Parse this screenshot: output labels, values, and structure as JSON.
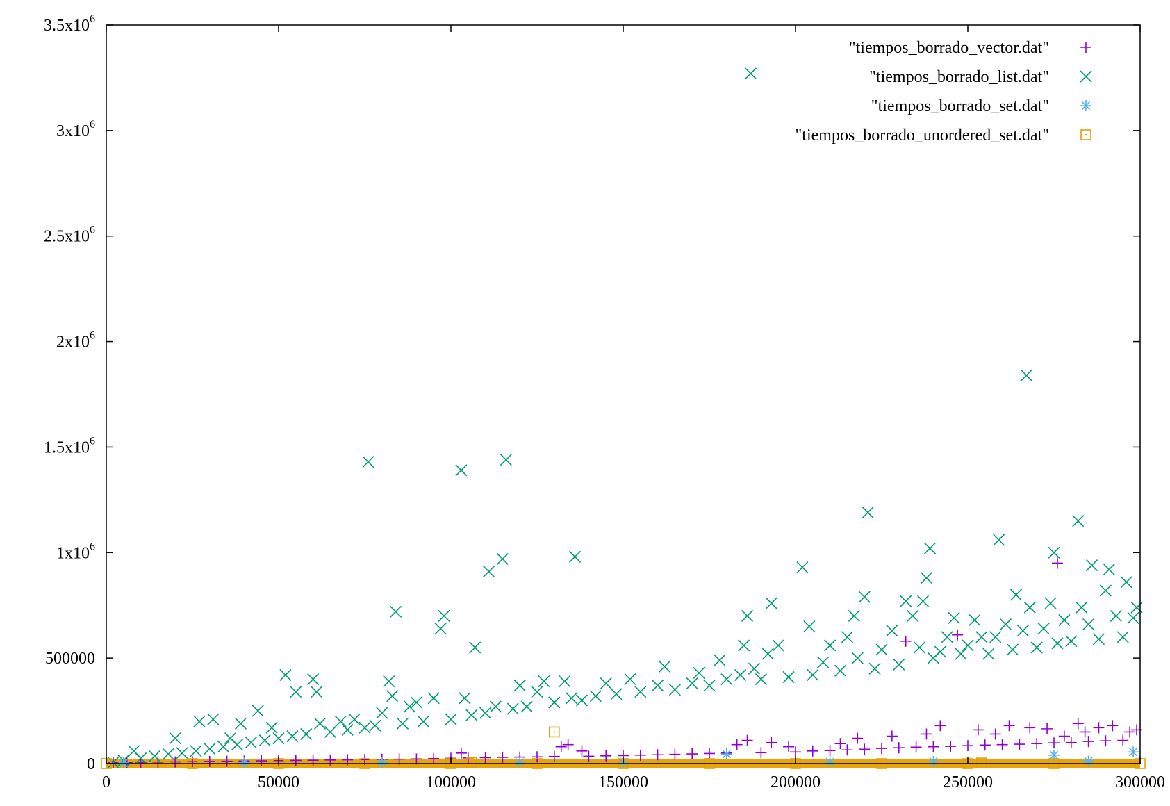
{
  "chart_data": {
    "type": "scatter",
    "title": "",
    "xlabel": "",
    "ylabel": "",
    "xlim": [
      0,
      300000
    ],
    "ylim": [
      0,
      3500000
    ],
    "grid": false,
    "legend_position": "top-right",
    "x_ticks": [
      {
        "value": 0,
        "label": "0"
      },
      {
        "value": 50000,
        "label": "50000"
      },
      {
        "value": 100000,
        "label": "100000"
      },
      {
        "value": 150000,
        "label": "150000"
      },
      {
        "value": 200000,
        "label": "200000"
      },
      {
        "value": 250000,
        "label": "250000"
      },
      {
        "value": 300000,
        "label": "300000"
      }
    ],
    "y_ticks": [
      {
        "value": 0,
        "mantissa": "0",
        "exponent": ""
      },
      {
        "value": 500000,
        "mantissa": "500000",
        "exponent": ""
      },
      {
        "value": 1000000,
        "mantissa": "1x10",
        "exponent": "6"
      },
      {
        "value": 1500000,
        "mantissa": "1.5x10",
        "exponent": "6"
      },
      {
        "value": 2000000,
        "mantissa": "2x10",
        "exponent": "6"
      },
      {
        "value": 2500000,
        "mantissa": "2.5x10",
        "exponent": "6"
      },
      {
        "value": 3000000,
        "mantissa": "3x10",
        "exponent": "6"
      },
      {
        "value": 3500000,
        "mantissa": "3.5x10",
        "exponent": "6"
      }
    ],
    "series": [
      {
        "name": "\"tiempos_borrado_vector.dat\"",
        "marker": "plus",
        "color": "#9400d3",
        "points": [
          [
            2000,
            4000
          ],
          [
            6000,
            5000
          ],
          [
            10000,
            6000
          ],
          [
            15000,
            7000
          ],
          [
            20000,
            8000
          ],
          [
            25000,
            9000
          ],
          [
            30000,
            10000
          ],
          [
            35000,
            11000
          ],
          [
            40000,
            12000
          ],
          [
            45000,
            13000
          ],
          [
            50000,
            14000
          ],
          [
            55000,
            15000
          ],
          [
            60000,
            16000
          ],
          [
            65000,
            17000
          ],
          [
            70000,
            18000
          ],
          [
            75000,
            19000
          ],
          [
            80000,
            20000
          ],
          [
            85000,
            21000
          ],
          [
            90000,
            22000
          ],
          [
            95000,
            24000
          ],
          [
            100000,
            25000
          ],
          [
            103000,
            50000
          ],
          [
            105000,
            27000
          ],
          [
            110000,
            28000
          ],
          [
            115000,
            30000
          ],
          [
            120000,
            31000
          ],
          [
            125000,
            32000
          ],
          [
            130000,
            34000
          ],
          [
            132000,
            80000
          ],
          [
            134000,
            90000
          ],
          [
            138000,
            60000
          ],
          [
            140000,
            35000
          ],
          [
            145000,
            37000
          ],
          [
            150000,
            38000
          ],
          [
            155000,
            40000
          ],
          [
            160000,
            42000
          ],
          [
            165000,
            44000
          ],
          [
            170000,
            46000
          ],
          [
            175000,
            48000
          ],
          [
            180000,
            50000
          ],
          [
            183000,
            90000
          ],
          [
            186000,
            110000
          ],
          [
            190000,
            52000
          ],
          [
            193000,
            100000
          ],
          [
            198000,
            80000
          ],
          [
            200000,
            55000
          ],
          [
            205000,
            60000
          ],
          [
            210000,
            62000
          ],
          [
            213000,
            95000
          ],
          [
            215000,
            65000
          ],
          [
            218000,
            120000
          ],
          [
            220000,
            68000
          ],
          [
            225000,
            72000
          ],
          [
            228000,
            130000
          ],
          [
            230000,
            75000
          ],
          [
            232000,
            580000
          ],
          [
            235000,
            78000
          ],
          [
            238000,
            140000
          ],
          [
            240000,
            80000
          ],
          [
            242000,
            180000
          ],
          [
            245000,
            82000
          ],
          [
            247000,
            610000
          ],
          [
            250000,
            85000
          ],
          [
            253000,
            160000
          ],
          [
            255000,
            88000
          ],
          [
            258000,
            140000
          ],
          [
            260000,
            90000
          ],
          [
            262000,
            180000
          ],
          [
            265000,
            92000
          ],
          [
            268000,
            170000
          ],
          [
            270000,
            95000
          ],
          [
            273000,
            165000
          ],
          [
            275000,
            98000
          ],
          [
            276000,
            950000
          ],
          [
            278000,
            130000
          ],
          [
            280000,
            100000
          ],
          [
            282000,
            190000
          ],
          [
            284000,
            150000
          ],
          [
            285000,
            105000
          ],
          [
            288000,
            170000
          ],
          [
            290000,
            108000
          ],
          [
            292000,
            180000
          ],
          [
            295000,
            110000
          ],
          [
            297000,
            150000
          ],
          [
            299000,
            160000
          ]
        ]
      },
      {
        "name": "\"tiempos_borrado_list.dat\"",
        "marker": "cross",
        "color": "#009e73",
        "points": [
          [
            2000,
            5000
          ],
          [
            5000,
            15000
          ],
          [
            8000,
            60000
          ],
          [
            10000,
            25000
          ],
          [
            14000,
            35000
          ],
          [
            18000,
            45000
          ],
          [
            20000,
            120000
          ],
          [
            22000,
            50000
          ],
          [
            26000,
            60000
          ],
          [
            27000,
            200000
          ],
          [
            30000,
            70000
          ],
          [
            31000,
            210000
          ],
          [
            34000,
            80000
          ],
          [
            36000,
            120000
          ],
          [
            38000,
            90000
          ],
          [
            39000,
            190000
          ],
          [
            42000,
            100000
          ],
          [
            44000,
            250000
          ],
          [
            46000,
            110000
          ],
          [
            48000,
            170000
          ],
          [
            50000,
            120000
          ],
          [
            52000,
            420000
          ],
          [
            54000,
            130000
          ],
          [
            55000,
            340000
          ],
          [
            58000,
            140000
          ],
          [
            60000,
            400000
          ],
          [
            61000,
            340000
          ],
          [
            62000,
            190000
          ],
          [
            65000,
            150000
          ],
          [
            68000,
            200000
          ],
          [
            70000,
            160000
          ],
          [
            72000,
            210000
          ],
          [
            75000,
            170000
          ],
          [
            76000,
            1430000
          ],
          [
            78000,
            180000
          ],
          [
            80000,
            240000
          ],
          [
            82000,
            390000
          ],
          [
            83000,
            320000
          ],
          [
            84000,
            720000
          ],
          [
            86000,
            190000
          ],
          [
            88000,
            270000
          ],
          [
            90000,
            290000
          ],
          [
            92000,
            200000
          ],
          [
            95000,
            310000
          ],
          [
            97000,
            640000
          ],
          [
            98000,
            700000
          ],
          [
            100000,
            210000
          ],
          [
            103000,
            1390000
          ],
          [
            104000,
            310000
          ],
          [
            106000,
            230000
          ],
          [
            107000,
            550000
          ],
          [
            110000,
            240000
          ],
          [
            111000,
            910000
          ],
          [
            113000,
            270000
          ],
          [
            115000,
            970000
          ],
          [
            116000,
            1440000
          ],
          [
            118000,
            260000
          ],
          [
            120000,
            370000
          ],
          [
            122000,
            270000
          ],
          [
            125000,
            340000
          ],
          [
            127000,
            390000
          ],
          [
            130000,
            290000
          ],
          [
            133000,
            390000
          ],
          [
            135000,
            310000
          ],
          [
            136000,
            980000
          ],
          [
            138000,
            300000
          ],
          [
            142000,
            320000
          ],
          [
            145000,
            380000
          ],
          [
            148000,
            330000
          ],
          [
            152000,
            400000
          ],
          [
            155000,
            340000
          ],
          [
            160000,
            370000
          ],
          [
            162000,
            460000
          ],
          [
            165000,
            350000
          ],
          [
            170000,
            380000
          ],
          [
            172000,
            430000
          ],
          [
            175000,
            370000
          ],
          [
            178000,
            490000
          ],
          [
            180000,
            400000
          ],
          [
            184000,
            420000
          ],
          [
            185000,
            560000
          ],
          [
            186000,
            700000
          ],
          [
            187000,
            3270000
          ],
          [
            188000,
            450000
          ],
          [
            190000,
            400000
          ],
          [
            192000,
            520000
          ],
          [
            193000,
            760000
          ],
          [
            195000,
            560000
          ],
          [
            198000,
            410000
          ],
          [
            202000,
            930000
          ],
          [
            204000,
            650000
          ],
          [
            205000,
            420000
          ],
          [
            208000,
            480000
          ],
          [
            210000,
            560000
          ],
          [
            213000,
            440000
          ],
          [
            215000,
            600000
          ],
          [
            217000,
            700000
          ],
          [
            218000,
            500000
          ],
          [
            220000,
            790000
          ],
          [
            221000,
            1190000
          ],
          [
            223000,
            450000
          ],
          [
            225000,
            540000
          ],
          [
            228000,
            630000
          ],
          [
            230000,
            470000
          ],
          [
            232000,
            770000
          ],
          [
            234000,
            700000
          ],
          [
            236000,
            550000
          ],
          [
            237000,
            770000
          ],
          [
            238000,
            880000
          ],
          [
            239000,
            1020000
          ],
          [
            240000,
            500000
          ],
          [
            242000,
            530000
          ],
          [
            244000,
            600000
          ],
          [
            246000,
            690000
          ],
          [
            248000,
            520000
          ],
          [
            250000,
            560000
          ],
          [
            252000,
            680000
          ],
          [
            254000,
            600000
          ],
          [
            256000,
            520000
          ],
          [
            258000,
            600000
          ],
          [
            259000,
            1060000
          ],
          [
            261000,
            660000
          ],
          [
            263000,
            540000
          ],
          [
            264000,
            800000
          ],
          [
            266000,
            630000
          ],
          [
            267000,
            1840000
          ],
          [
            268000,
            740000
          ],
          [
            270000,
            550000
          ],
          [
            272000,
            640000
          ],
          [
            274000,
            760000
          ],
          [
            275000,
            1000000
          ],
          [
            276000,
            570000
          ],
          [
            278000,
            680000
          ],
          [
            280000,
            580000
          ],
          [
            282000,
            1150000
          ],
          [
            283000,
            740000
          ],
          [
            285000,
            660000
          ],
          [
            286000,
            940000
          ],
          [
            288000,
            590000
          ],
          [
            290000,
            820000
          ],
          [
            291000,
            920000
          ],
          [
            293000,
            700000
          ],
          [
            295000,
            600000
          ],
          [
            296000,
            860000
          ],
          [
            298000,
            690000
          ],
          [
            299000,
            740000
          ]
        ]
      },
      {
        "name": "\"tiempos_borrado_set.dat\"",
        "marker": "star",
        "color": "#56b4e9",
        "points": [
          [
            5000,
            3000
          ],
          [
            40000,
            4000
          ],
          [
            80000,
            5000
          ],
          [
            120000,
            6000
          ],
          [
            150000,
            7000
          ],
          [
            180000,
            45000
          ],
          [
            210000,
            8000
          ],
          [
            240000,
            10000
          ],
          [
            275000,
            40000
          ],
          [
            285000,
            12000
          ],
          [
            298000,
            55000
          ]
        ]
      },
      {
        "name": "\"tiempos_borrado_unordered_set.dat\"",
        "marker": "square",
        "color": "#e69f00",
        "points": [
          [
            0,
            0
          ],
          [
            25000,
            0
          ],
          [
            50000,
            0
          ],
          [
            75000,
            0
          ],
          [
            100000,
            0
          ],
          [
            106000,
            5000
          ],
          [
            125000,
            0
          ],
          [
            130000,
            150000
          ],
          [
            150000,
            0
          ],
          [
            175000,
            0
          ],
          [
            200000,
            0
          ],
          [
            225000,
            0
          ],
          [
            250000,
            0
          ],
          [
            254000,
            3000
          ],
          [
            275000,
            0
          ],
          [
            300000,
            0
          ]
        ]
      }
    ]
  }
}
